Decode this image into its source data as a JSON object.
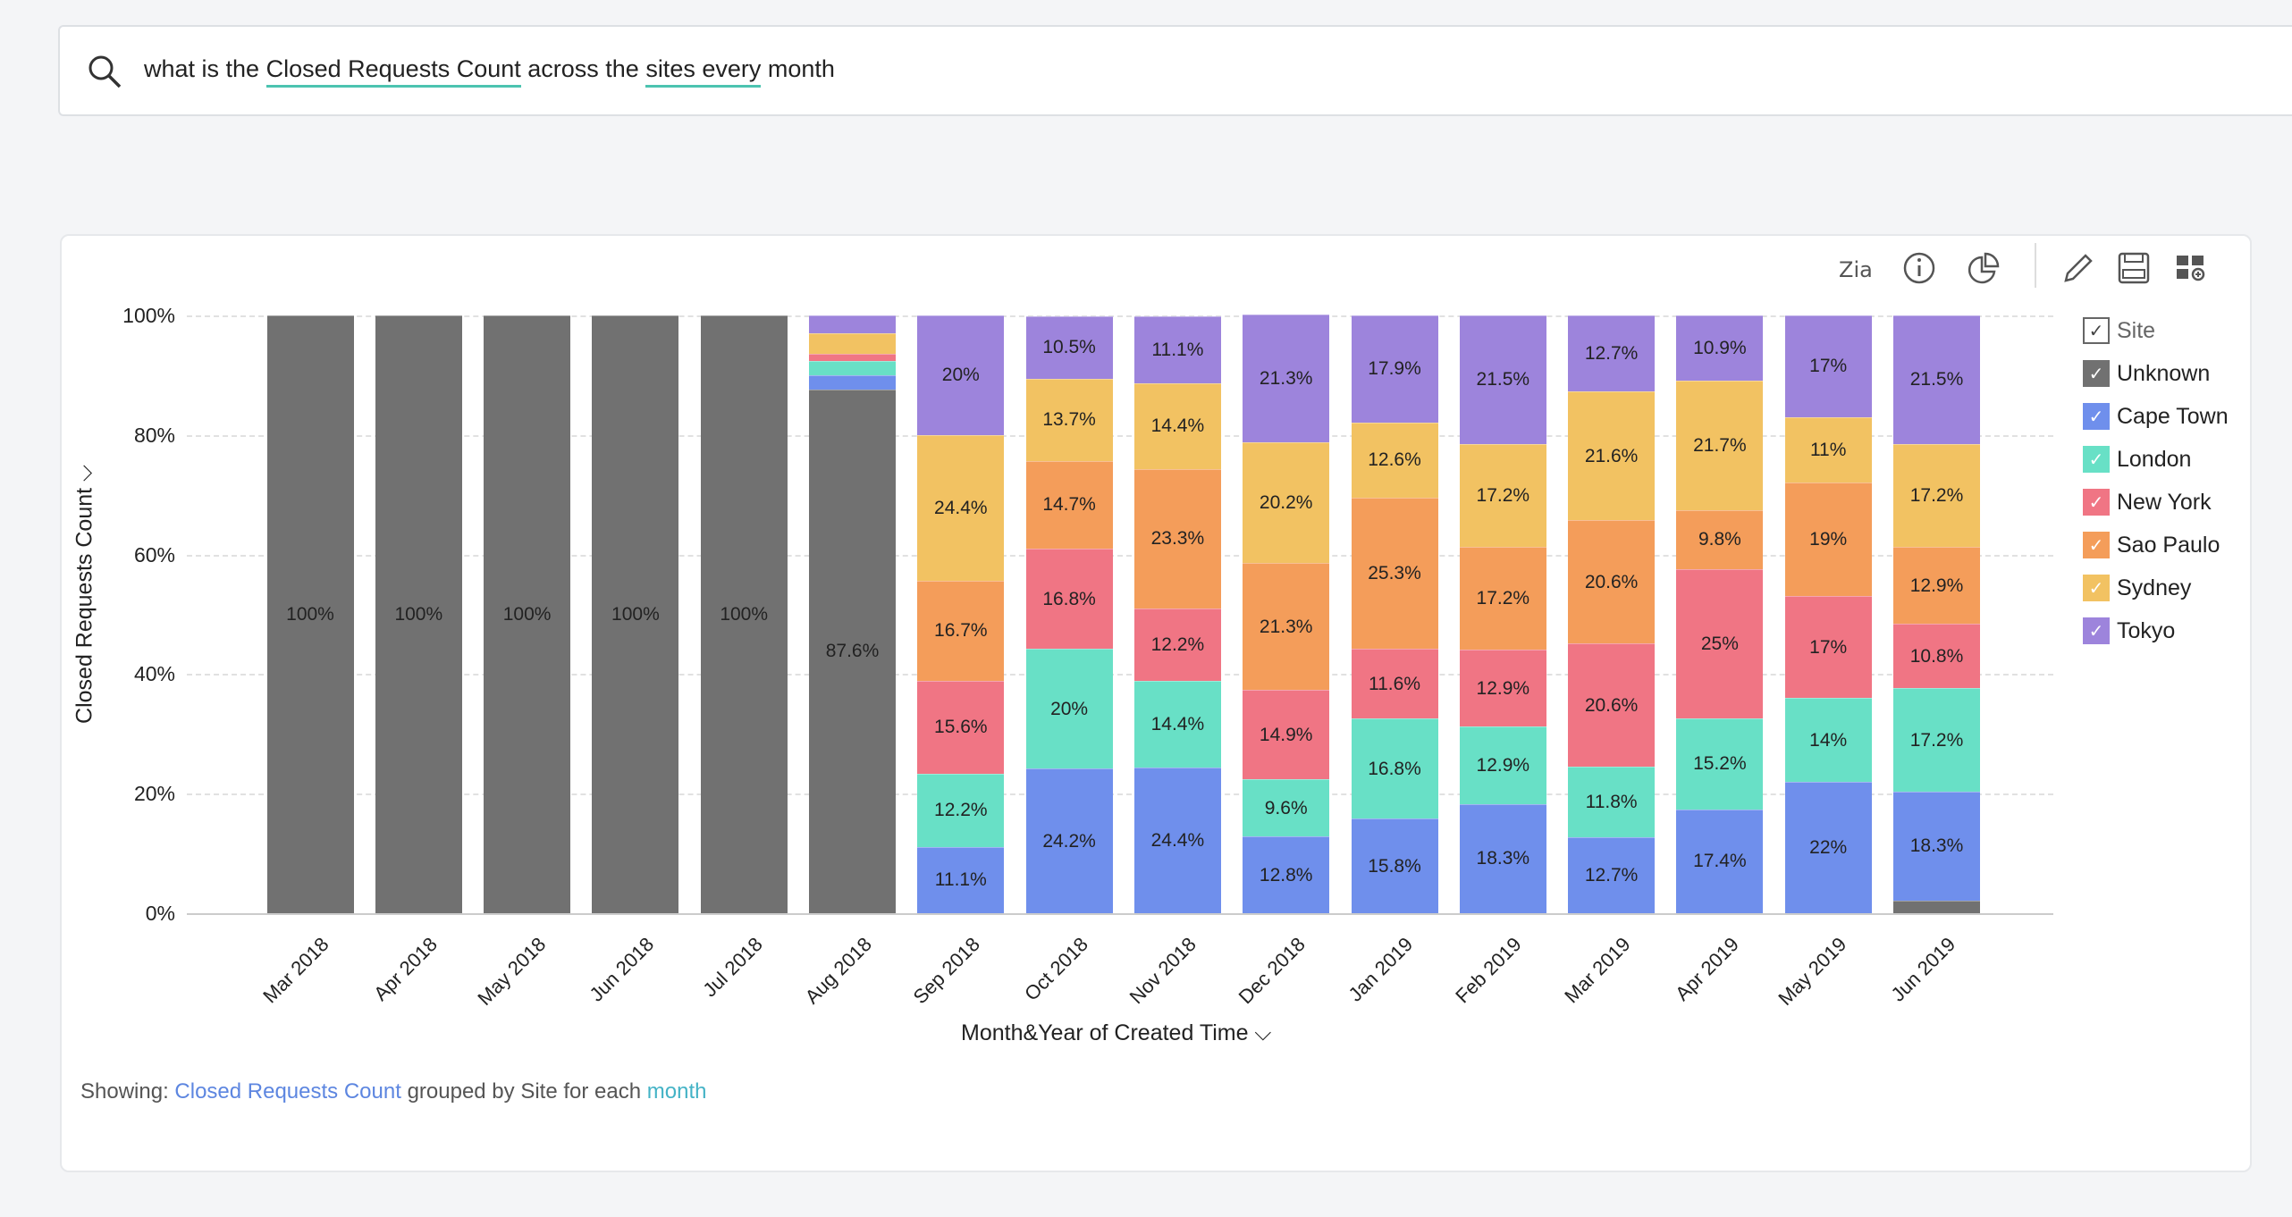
{
  "search": {
    "prefix": "what is the ",
    "measure": "Closed Requests Count",
    "mid": " across the ",
    "dim": "sites every",
    "suffix": " month"
  },
  "toolbar": {
    "icons": [
      "zia-icon",
      "info-icon",
      "chart-type-icon",
      "edit-icon",
      "save-icon",
      "add-to-dashboard-icon"
    ]
  },
  "footer": {
    "showing": "Showing:",
    "measure": "Closed Requests Count",
    "grouped": "grouped by",
    "dimension": "Site",
    "foreach": "for each",
    "time": "month"
  },
  "chart_data": {
    "type": "bar",
    "stacked": "percent",
    "title": "",
    "ylabel": "Closed Requests Count ⌵",
    "xlabel": "Month&Year of Created Time ⌵",
    "ylim": [
      0,
      100
    ],
    "yticks": [
      "0%",
      "20%",
      "40%",
      "60%",
      "80%",
      "100%"
    ],
    "grid": true,
    "legend_position": "right",
    "legend_title": "Site",
    "categories": [
      "Mar 2018",
      "Apr 2018",
      "May 2018",
      "Jun 2018",
      "Jul 2018",
      "Aug 2018",
      "Sep 2018",
      "Oct 2018",
      "Nov 2018",
      "Dec 2018",
      "Jan 2019",
      "Feb 2019",
      "Mar 2019",
      "Apr 2019",
      "May 2019",
      "Jun 2019"
    ],
    "series": [
      {
        "name": "Unknown",
        "color": "#717171",
        "values": [
          100,
          100,
          100,
          100,
          100,
          87.6,
          0,
          0,
          0,
          0,
          0,
          0,
          0,
          0,
          0,
          2.1
        ]
      },
      {
        "name": "Cape Town",
        "color": "#6f8fec",
        "values": [
          0,
          0,
          0,
          0,
          0,
          2.4,
          11.1,
          24.2,
          24.4,
          12.8,
          15.8,
          18.3,
          12.7,
          17.4,
          22,
          18.3
        ]
      },
      {
        "name": "London",
        "color": "#68e0c6",
        "values": [
          0,
          0,
          0,
          0,
          0,
          2.4,
          12.2,
          20,
          14.4,
          9.6,
          16.8,
          12.9,
          11.8,
          15.2,
          14,
          17.2
        ]
      },
      {
        "name": "New York",
        "color": "#f07584",
        "values": [
          0,
          0,
          0,
          0,
          0,
          1.2,
          15.6,
          16.8,
          12.2,
          14.9,
          11.6,
          12.9,
          20.6,
          25,
          17,
          10.8
        ]
      },
      {
        "name": "Sao Paulo",
        "color": "#f49d5a",
        "values": [
          0,
          0,
          0,
          0,
          0,
          0,
          16.7,
          14.7,
          23.3,
          21.3,
          25.3,
          17.2,
          20.6,
          9.8,
          19,
          12.9
        ]
      },
      {
        "name": "Sydney",
        "color": "#f2c262",
        "values": [
          0,
          0,
          0,
          0,
          0,
          3.4,
          24.4,
          13.7,
          14.4,
          20.2,
          12.6,
          17.2,
          21.6,
          21.7,
          11,
          17.2
        ]
      },
      {
        "name": "Tokyo",
        "color": "#9d84dc",
        "values": [
          0,
          0,
          0,
          0,
          0,
          3.0,
          20,
          10.5,
          11.1,
          21.3,
          17.9,
          21.5,
          12.7,
          10.9,
          17,
          21.5
        ]
      }
    ]
  }
}
